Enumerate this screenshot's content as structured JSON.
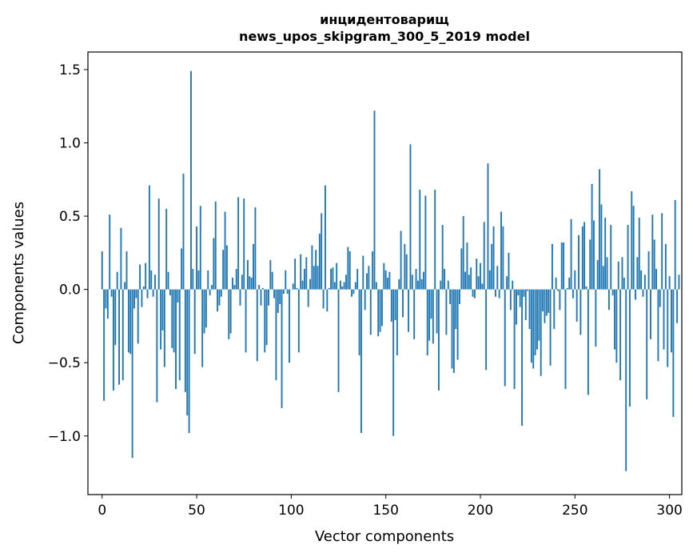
{
  "chart_data": {
    "type": "bar",
    "title": "инцидентоварищ",
    "subtitle": "news_upos_skipgram_300_5_2019 model",
    "xlabel": "Vector components",
    "ylabel": "Components values",
    "xlim": [
      -7.5,
      306.5
    ],
    "ylim": [
      -1.4,
      1.62
    ],
    "xticks": [
      0,
      50,
      100,
      150,
      200,
      250,
      300
    ],
    "xtick_labels": [
      "0",
      "50",
      "100",
      "150",
      "200",
      "250",
      "300"
    ],
    "yticks": [
      -1.0,
      -0.5,
      0.0,
      0.5,
      1.0,
      1.5
    ],
    "ytick_labels": [
      "−1.0",
      "−0.5",
      "0.0",
      "0.5",
      "1.0",
      "1.5"
    ],
    "bar_color": "#1f77b4",
    "grid": false,
    "values": [
      0.26,
      -0.76,
      -0.13,
      -0.2,
      0.51,
      -0.05,
      -0.69,
      -0.38,
      0.12,
      -0.65,
      0.42,
      -0.62,
      0.05,
      0.26,
      -0.43,
      -0.44,
      -1.15,
      -0.13,
      -0.06,
      -0.37,
      0.17,
      -0.12,
      0.02,
      0.18,
      -0.06,
      0.71,
      0.13,
      -0.05,
      0.1,
      -0.77,
      0.62,
      -0.41,
      -0.28,
      -0.53,
      0.55,
      0.12,
      -0.04,
      -0.4,
      -0.43,
      -0.68,
      -0.09,
      -0.62,
      0.28,
      0.79,
      -0.7,
      -0.86,
      -0.98,
      1.49,
      0.14,
      -0.44,
      0.43,
      0.13,
      0.57,
      -0.53,
      -0.3,
      -0.26,
      0.13,
      -0.04,
      0.03,
      0.35,
      0.6,
      -0.15,
      -0.11,
      -0.05,
      0.27,
      0.53,
      0.3,
      -0.34,
      -0.3,
      0.08,
      0.03,
      0.14,
      0.63,
      -0.11,
      0.1,
      0.62,
      -0.43,
      0.2,
      0.09,
      0.08,
      0.31,
      0.56,
      -0.49,
      0.03,
      -0.11,
      0.01,
      -0.43,
      -0.38,
      -0.11,
      0.2,
      0.12,
      -0.06,
      -0.62,
      -0.16,
      -0.1,
      -0.81,
      -0.03,
      0.13,
      -0.03,
      -0.5,
      0.0,
      0.04,
      0.21,
      0.01,
      -0.43,
      0.24,
      0.06,
      0.14,
      0.22,
      -0.12,
      0.07,
      0.3,
      0.16,
      0.27,
      0.16,
      0.38,
      0.52,
      -0.13,
      0.71,
      -0.15,
      0.01,
      0.14,
      0.15,
      0.05,
      0.18,
      -0.7,
      0.06,
      0.02,
      0.05,
      0.1,
      0.29,
      0.26,
      -0.05,
      -0.03,
      0.05,
      0.14,
      -0.45,
      -0.98,
      0.23,
      -0.14,
      0.11,
      0.16,
      -0.31,
      0.26,
      1.22,
      0.05,
      -0.32,
      -0.29,
      -0.25,
      0.18,
      0.13,
      0.08,
      0.12,
      -0.22,
      -1.0,
      -0.21,
      -0.45,
      0.07,
      0.4,
      -0.19,
      0.31,
      0.24,
      -0.29,
      0.99,
      0.1,
      -0.34,
      0.14,
      0.06,
      0.68,
      0.07,
      0.12,
      0.64,
      -0.45,
      -0.35,
      -0.2,
      -0.37,
      0.68,
      -0.3,
      -0.69,
      0.06,
      0.44,
      0.14,
      -0.31,
      0.06,
      -0.1,
      -0.54,
      -0.57,
      -0.27,
      -0.48,
      -0.1,
      0.28,
      0.5,
      0.12,
      0.32,
      0.1,
      0.15,
      -0.05,
      -0.06,
      0.21,
      0.09,
      0.18,
      0.04,
      0.46,
      -0.55,
      0.86,
      0.13,
      0.31,
      0.43,
      -0.05,
      0.16,
      -0.06,
      0.53,
      0.43,
      -0.66,
      0.09,
      0.25,
      -0.14,
      0.06,
      -0.68,
      -0.24,
      -0.04,
      -0.12,
      -0.93,
      -0.05,
      -0.21,
      -0.01,
      -0.27,
      -0.5,
      -0.54,
      -0.45,
      -0.41,
      -0.35,
      -0.59,
      -0.15,
      -0.23,
      -0.18,
      -0.16,
      -0.52,
      0.31,
      -0.27,
      0.08,
      -0.01,
      -0.14,
      0.32,
      0.32,
      -0.68,
      0.01,
      0.08,
      0.48,
      -0.06,
      0.13,
      -0.22,
      0.37,
      -0.31,
      0.43,
      0.46,
      0.02,
      -0.72,
      0.34,
      0.72,
      0.47,
      -0.39,
      0.2,
      0.82,
      0.58,
      0.16,
      0.49,
      0.22,
      -0.14,
      0.44,
      -0.04,
      -0.41,
      -0.5,
      0.19,
      -0.62,
      0.22,
      0.08,
      -1.24,
      0.44,
      -0.8,
      0.67,
      0.57,
      -0.07,
      0.22,
      0.49,
      0.13,
      -0.05,
      0.1,
      -0.75,
      0.26,
      -0.34,
      0.51,
      0.34,
      0.14,
      -0.49,
      -0.12,
      0.52,
      -0.41,
      0.31,
      -0.53,
      0.09,
      -0.43,
      -0.87,
      0.61,
      -0.23,
      0.1
    ]
  }
}
